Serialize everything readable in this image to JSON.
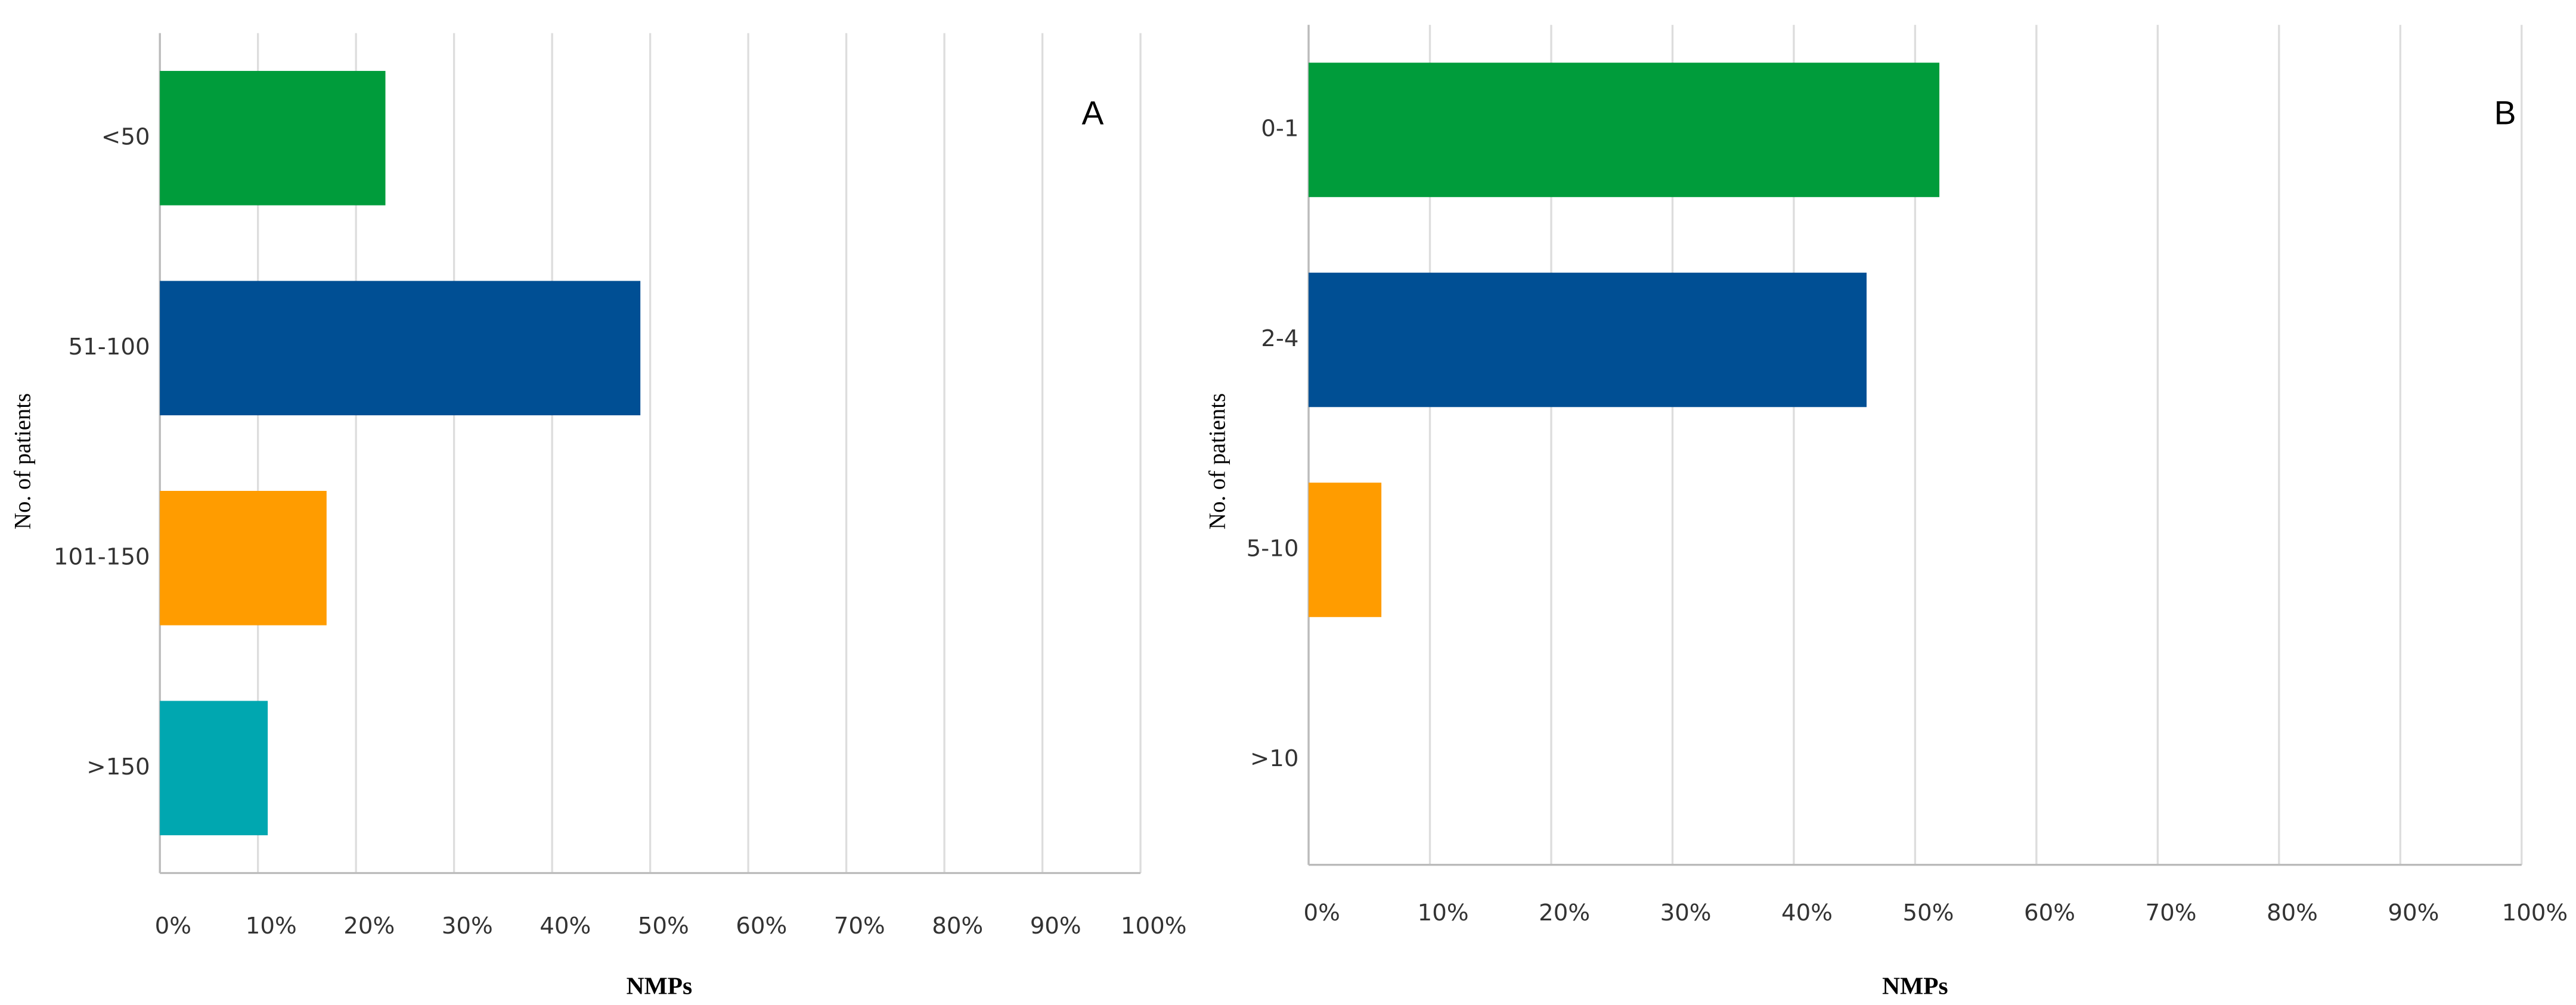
{
  "chart_data": [
    {
      "type": "bar",
      "orientation": "horizontal",
      "panel_label": "A",
      "x_label": "NMPs",
      "y_label": "No. of patients",
      "categories": [
        "<50",
        "51-100",
        "101-150",
        ">150"
      ],
      "values": [
        23,
        49,
        17,
        11
      ],
      "colors": [
        "#009c3b",
        "#004f94",
        "#ff9c00",
        "#00a7b0"
      ],
      "grid": true,
      "xlim": [
        0,
        100
      ],
      "xticks": [
        {
          "value": 0,
          "label": "0%"
        },
        {
          "value": 10,
          "label": "10%"
        },
        {
          "value": 20,
          "label": "20%"
        },
        {
          "value": 30,
          "label": "30%"
        },
        {
          "value": 40,
          "label": "40%"
        },
        {
          "value": 50,
          "label": "50%"
        },
        {
          "value": 60,
          "label": "60%"
        },
        {
          "value": 70,
          "label": "70%"
        },
        {
          "value": 80,
          "label": "80%"
        },
        {
          "value": 90,
          "label": "90%"
        },
        {
          "value": 100,
          "label": "100%"
        }
      ]
    },
    {
      "type": "bar",
      "orientation": "horizontal",
      "panel_label": "B",
      "x_label": "NMPs",
      "y_label": "No. of patients",
      "categories": [
        "0-1",
        "2-4",
        "5-10",
        ">10"
      ],
      "values": [
        52,
        46,
        6,
        0
      ],
      "colors": [
        "#009c3b",
        "#004f94",
        "#ff9c00",
        "#00a7b0"
      ],
      "grid": true,
      "xlim": [
        0,
        100
      ],
      "xticks": [
        {
          "value": 0,
          "label": "0%"
        },
        {
          "value": 10,
          "label": "10%"
        },
        {
          "value": 20,
          "label": "20%"
        },
        {
          "value": 30,
          "label": "30%"
        },
        {
          "value": 40,
          "label": "40%"
        },
        {
          "value": 50,
          "label": "50%"
        },
        {
          "value": 60,
          "label": "60%"
        },
        {
          "value": 70,
          "label": "70%"
        },
        {
          "value": 80,
          "label": "80%"
        },
        {
          "value": 90,
          "label": "90%"
        },
        {
          "value": 100,
          "label": "100%"
        }
      ]
    }
  ]
}
